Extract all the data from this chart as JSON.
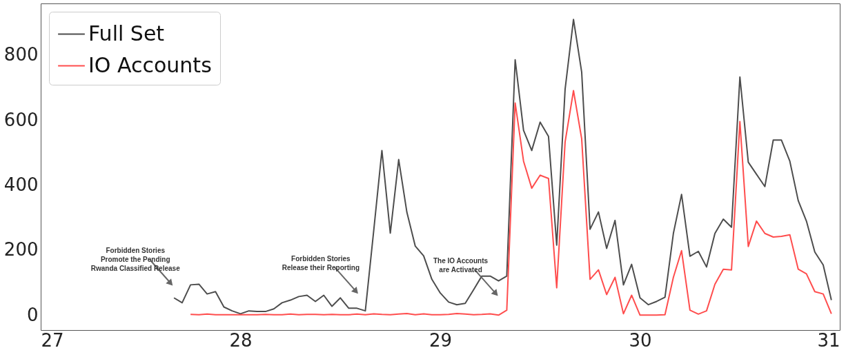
{
  "chart_data": {
    "type": "line",
    "xlim": [
      27,
      31
    ],
    "xticks": [
      {
        "value": 27,
        "label": "27"
      },
      {
        "value": 28,
        "label": "28"
      },
      {
        "value": 29,
        "label": "29"
      },
      {
        "value": 30,
        "label": "30"
      },
      {
        "value": 31,
        "label": "31"
      }
    ],
    "ylim": [
      -46,
      958
    ],
    "yticks": [
      0,
      200,
      400,
      600,
      800
    ],
    "grid": false,
    "legend": "top left",
    "line_style": "solid",
    "series": [
      {
        "name": "Full Set",
        "color": "#4d4d4d",
        "x": [
          27.667,
          27.708,
          27.75,
          27.792,
          27.833,
          27.875,
          27.917,
          27.958,
          28,
          28.042,
          28.083,
          28.125,
          28.167,
          28.208,
          28.25,
          28.292,
          28.333,
          28.375,
          28.417,
          28.458,
          28.5,
          28.542,
          28.583,
          28.625,
          28.667,
          28.708,
          28.75,
          28.792,
          28.833,
          28.875,
          28.917,
          28.958,
          29,
          29.042,
          29.083,
          29.125,
          29.167,
          29.208,
          29.25,
          29.292,
          29.333,
          29.375,
          29.417,
          29.458,
          29.5,
          29.542,
          29.583,
          29.625,
          29.667,
          29.708,
          29.75,
          29.792,
          29.833,
          29.875,
          29.917,
          29.958,
          30,
          30.042,
          30.083,
          30.125,
          30.167,
          30.208,
          30.25,
          30.292,
          30.333,
          30.375,
          30.417,
          30.458,
          30.5,
          30.542,
          30.583,
          30.625,
          30.667,
          30.708,
          30.75,
          30.792,
          30.833,
          30.875,
          30.917,
          30.958
        ],
        "values": [
          53,
          38,
          93,
          95,
          65,
          72,
          25,
          13,
          4,
          13,
          11,
          11,
          19,
          38,
          46,
          57,
          61,
          42,
          61,
          27,
          53,
          21,
          21,
          13,
          260,
          506,
          252,
          478,
          316,
          212,
          182,
          110,
          68,
          40,
          32,
          36,
          78,
          120,
          120,
          105,
          120,
          785,
          568,
          506,
          593,
          549,
          215,
          694,
          909,
          747,
          264,
          317,
          205,
          291,
          93,
          156,
          53,
          32,
          42,
          55,
          251,
          371,
          181,
          196,
          148,
          251,
          295,
          270,
          732,
          470,
          433,
          395,
          538,
          538,
          473,
          352,
          289,
          194,
          154,
          46
        ]
      },
      {
        "name": "IO Accounts",
        "color": "#ff4d4d",
        "x": [
          27.75,
          27.792,
          27.833,
          27.875,
          27.917,
          27.958,
          28,
          28.042,
          28.083,
          28.125,
          28.167,
          28.208,
          28.25,
          28.292,
          28.333,
          28.375,
          28.417,
          28.458,
          28.5,
          28.542,
          28.583,
          28.625,
          28.667,
          28.708,
          28.75,
          28.792,
          28.833,
          28.875,
          28.917,
          28.958,
          29,
          29.042,
          29.083,
          29.125,
          29.167,
          29.208,
          29.25,
          29.292,
          29.333,
          29.375,
          29.417,
          29.458,
          29.5,
          29.542,
          29.583,
          29.625,
          29.667,
          29.708,
          29.75,
          29.792,
          29.833,
          29.875,
          29.917,
          29.958,
          30,
          30.042,
          30.083,
          30.125,
          30.167,
          30.208,
          30.25,
          30.292,
          30.333,
          30.375,
          30.417,
          30.458,
          30.5,
          30.542,
          30.583,
          30.625,
          30.667,
          30.708,
          30.75,
          30.792,
          30.833,
          30.875,
          30.917,
          30.958
        ],
        "values": [
          2,
          1,
          3,
          1,
          1,
          1,
          1,
          1,
          1,
          2,
          1,
          1,
          3,
          1,
          2,
          2,
          1,
          2,
          1,
          1,
          3,
          1,
          4,
          2,
          1,
          3,
          5,
          1,
          4,
          1,
          1,
          2,
          5,
          3,
          1,
          2,
          4,
          0,
          15,
          652,
          473,
          390,
          430,
          420,
          84,
          532,
          690,
          542,
          110,
          139,
          63,
          116,
          4,
          61,
          0,
          0,
          0,
          1,
          116,
          198,
          15,
          3,
          13,
          95,
          141,
          139,
          595,
          211,
          289,
          251,
          240,
          242,
          247,
          141,
          127,
          72,
          65,
          4
        ]
      }
    ],
    "annotations": [
      "Forbidden Stories\nPromote the Pending\nRwanda Classified Release",
      "Forbidden Stories\nRelease their Reporting",
      "The IO Accounts\nare Activated"
    ]
  }
}
